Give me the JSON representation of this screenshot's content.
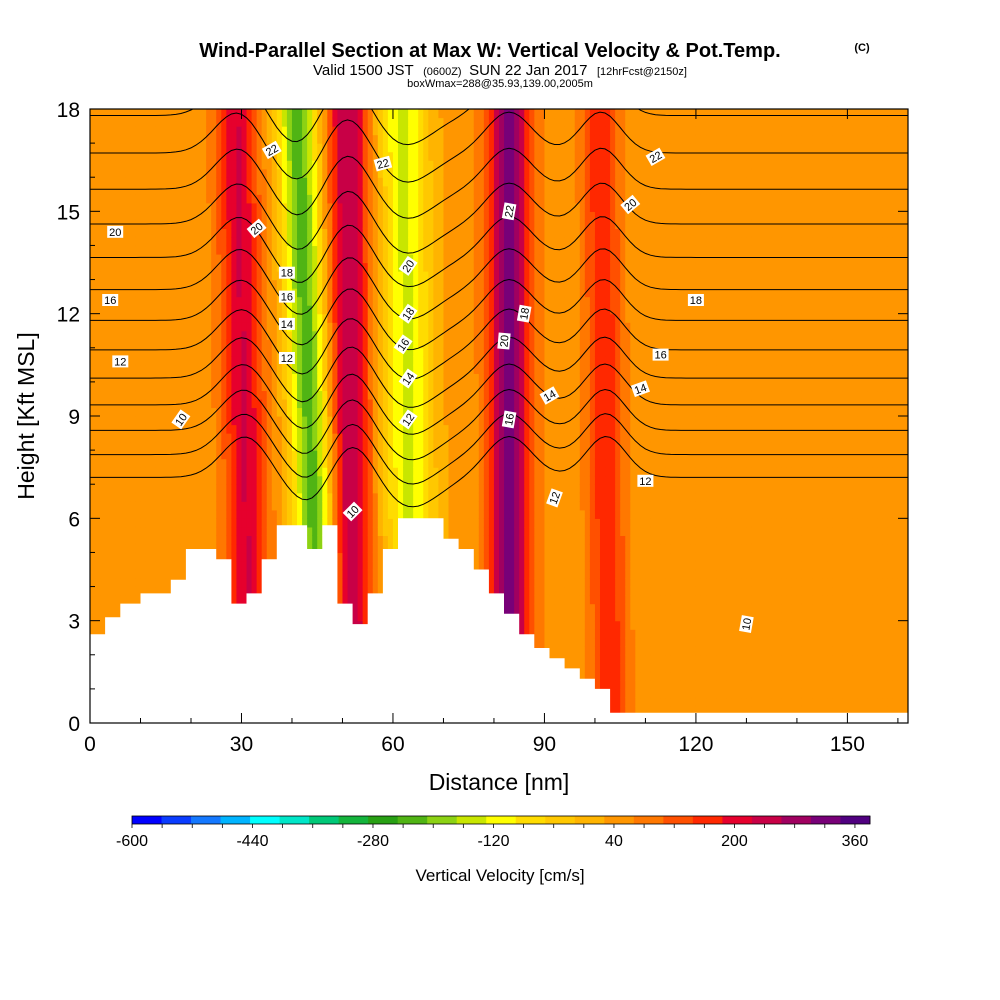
{
  "header": {
    "title": "Wind-Parallel Section at Max W: Vertical Velocity & Pot.Temp.",
    "title_mark": "(C)",
    "valid_prefix": "Valid 1500 JST",
    "valid_zulu": "(0600Z)",
    "valid_suffix": "SUN 22 Jan 2017",
    "forecast": "[12hrFcst@2150z]",
    "box_info": "boxWmax=288@35.93,139.00,2005m"
  },
  "chart_data": {
    "type": "heatmap",
    "xlabel": "Distance [nm]",
    "ylabel": "Height [Kft MSL]",
    "xlim": [
      0,
      162
    ],
    "ylim": [
      0,
      18
    ],
    "x_ticks": [
      0,
      30,
      60,
      90,
      120,
      150
    ],
    "y_ticks": [
      0,
      3,
      6,
      9,
      12,
      15,
      18
    ],
    "colorbar": {
      "label": "Vertical Velocity [cm/s]",
      "min": -600,
      "max": 380,
      "step": 40,
      "tick_labels": [
        -600,
        -440,
        -280,
        -120,
        40,
        200,
        360
      ],
      "colors": [
        "#0000ff",
        "#0a3cff",
        "#1478ff",
        "#00b4ff",
        "#00ffff",
        "#00e6c8",
        "#00c878",
        "#14b43c",
        "#28a014",
        "#50b414",
        "#8cd214",
        "#c8e600",
        "#ffff00",
        "#ffdc00",
        "#ffc800",
        "#ffb400",
        "#ff9600",
        "#ff7800",
        "#ff5000",
        "#ff2800",
        "#e6002d",
        "#c80046",
        "#a00060",
        "#780078",
        "#500080"
      ]
    },
    "background_value": 60,
    "updraft_downdraft_bands": [
      {
        "name": "updraft-1",
        "x_bottom": 32,
        "x_top": 29,
        "width": 4,
        "peak": 200
      },
      {
        "name": "downdraft-1",
        "x_bottom": 46,
        "x_top": 41,
        "width": 4,
        "peak": -260
      },
      {
        "name": "updraft-2",
        "x_bottom": 52,
        "x_top": 51,
        "width": 4,
        "peak": 240
      },
      {
        "name": "downdraft-2",
        "x_bottom": 64,
        "x_top": 62,
        "width": 5,
        "peak": -170
      },
      {
        "name": "updraft-3",
        "x_bottom": 83,
        "x_top": 83,
        "width": 4,
        "peak": 300
      },
      {
        "name": "updraft-4",
        "x_bottom": 103,
        "x_top": 101,
        "width": 3.5,
        "peak": 150
      }
    ],
    "terrain": [
      [
        0,
        2.6
      ],
      [
        3,
        2.6
      ],
      [
        3,
        3.1
      ],
      [
        6,
        3.1
      ],
      [
        6,
        3.5
      ],
      [
        10,
        3.5
      ],
      [
        10,
        3.8
      ],
      [
        16,
        3.8
      ],
      [
        16,
        4.2
      ],
      [
        19,
        4.2
      ],
      [
        19,
        5.1
      ],
      [
        25,
        5.1
      ],
      [
        25,
        4.8
      ],
      [
        28,
        4.8
      ],
      [
        28,
        3.5
      ],
      [
        31,
        3.5
      ],
      [
        31,
        3.8
      ],
      [
        34,
        3.8
      ],
      [
        34,
        4.8
      ],
      [
        37,
        4.8
      ],
      [
        37,
        5.8
      ],
      [
        43,
        5.8
      ],
      [
        43,
        5.1
      ],
      [
        46,
        5.1
      ],
      [
        46,
        5.8
      ],
      [
        49,
        5.8
      ],
      [
        49,
        3.5
      ],
      [
        52,
        3.5
      ],
      [
        52,
        2.9
      ],
      [
        55,
        2.9
      ],
      [
        55,
        3.8
      ],
      [
        58,
        3.8
      ],
      [
        58,
        5.1
      ],
      [
        61,
        5.1
      ],
      [
        61,
        6.0
      ],
      [
        70,
        6.0
      ],
      [
        70,
        5.4
      ],
      [
        73,
        5.4
      ],
      [
        73,
        5.1
      ],
      [
        76,
        5.1
      ],
      [
        76,
        4.5
      ],
      [
        79,
        4.5
      ],
      [
        79,
        3.8
      ],
      [
        82,
        3.8
      ],
      [
        82,
        3.2
      ],
      [
        85,
        3.2
      ],
      [
        85,
        2.6
      ],
      [
        88,
        2.6
      ],
      [
        88,
        2.2
      ],
      [
        91,
        2.2
      ],
      [
        91,
        1.9
      ],
      [
        94,
        1.9
      ],
      [
        94,
        1.6
      ],
      [
        97,
        1.6
      ],
      [
        97,
        1.3
      ],
      [
        100,
        1.3
      ],
      [
        100,
        1.0
      ],
      [
        103,
        1.0
      ],
      [
        103,
        0.3
      ],
      [
        162,
        0.3
      ]
    ],
    "potential_temperature_contours": {
      "levels": [
        9,
        10,
        11,
        12,
        13,
        14,
        15,
        16,
        17,
        18,
        19,
        20,
        21,
        22,
        23
      ],
      "base_height_at_level_9": 7.2,
      "spacing_kft": 0.65
    },
    "contour_labels": [
      {
        "text": "22",
        "x": 36,
        "y": 16.8,
        "angle": -30
      },
      {
        "text": "20",
        "x": 33,
        "y": 14.5,
        "angle": -40
      },
      {
        "text": "18",
        "x": 39,
        "y": 13.2,
        "angle": 0
      },
      {
        "text": "16",
        "x": 39,
        "y": 12.5,
        "angle": 0
      },
      {
        "text": "14",
        "x": 39,
        "y": 11.7,
        "angle": 0
      },
      {
        "text": "12",
        "x": 39,
        "y": 10.7,
        "angle": 0
      },
      {
        "text": "10",
        "x": 18,
        "y": 8.9,
        "angle": -55
      },
      {
        "text": "20",
        "x": 5,
        "y": 14.4,
        "angle": 0
      },
      {
        "text": "16",
        "x": 4,
        "y": 12.4,
        "angle": 0
      },
      {
        "text": "12",
        "x": 6,
        "y": 10.6,
        "angle": 0
      },
      {
        "text": "22",
        "x": 58,
        "y": 16.4,
        "angle": -15
      },
      {
        "text": "20",
        "x": 63,
        "y": 13.4,
        "angle": -55
      },
      {
        "text": "18",
        "x": 63,
        "y": 12.0,
        "angle": -55
      },
      {
        "text": "16",
        "x": 62,
        "y": 11.1,
        "angle": -55
      },
      {
        "text": "14",
        "x": 63,
        "y": 10.1,
        "angle": -55
      },
      {
        "text": "12",
        "x": 63,
        "y": 8.9,
        "angle": -55
      },
      {
        "text": "10",
        "x": 52,
        "y": 6.2,
        "angle": -45
      },
      {
        "text": "22",
        "x": 83,
        "y": 15.0,
        "angle": -80
      },
      {
        "text": "18",
        "x": 86,
        "y": 12.0,
        "angle": -80
      },
      {
        "text": "20",
        "x": 82,
        "y": 11.2,
        "angle": -85
      },
      {
        "text": "16",
        "x": 83,
        "y": 8.9,
        "angle": -80
      },
      {
        "text": "14",
        "x": 91,
        "y": 9.6,
        "angle": -30
      },
      {
        "text": "12",
        "x": 92,
        "y": 6.6,
        "angle": -70
      },
      {
        "text": "22",
        "x": 112,
        "y": 16.6,
        "angle": -30
      },
      {
        "text": "20",
        "x": 107,
        "y": 15.2,
        "angle": -40
      },
      {
        "text": "18",
        "x": 120,
        "y": 12.4,
        "angle": 0
      },
      {
        "text": "16",
        "x": 113,
        "y": 10.8,
        "angle": 0
      },
      {
        "text": "14",
        "x": 109,
        "y": 9.8,
        "angle": -20
      },
      {
        "text": "12",
        "x": 110,
        "y": 7.1,
        "angle": 0
      },
      {
        "text": "10",
        "x": 130,
        "y": 2.9,
        "angle": -80
      }
    ]
  }
}
